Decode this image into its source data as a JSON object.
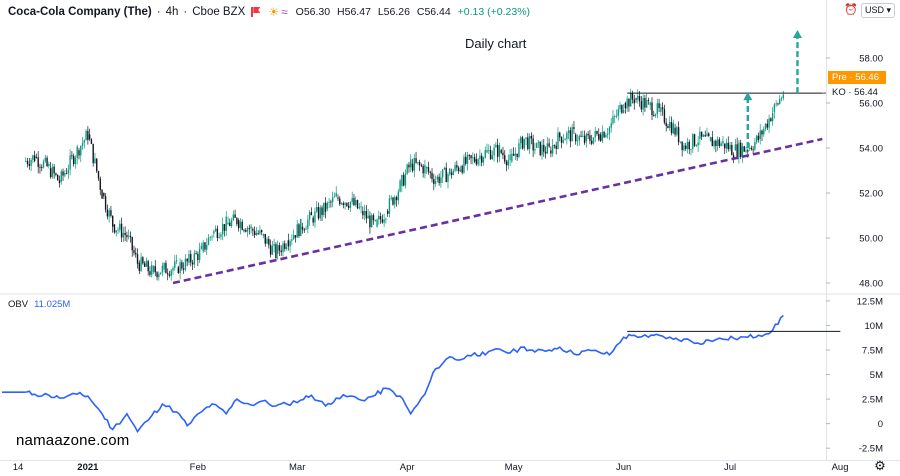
{
  "header": {
    "title": "Coca-Cola Company (The)",
    "interval": "4h",
    "exchange": "Cboe BZX",
    "open": "O56.30",
    "high": "H56.47",
    "low": "L56.26",
    "close": "C56.44",
    "change": "+0.13 (+0.23%)"
  },
  "currency_button": "USD",
  "annotation_text": "Daily chart",
  "watermark": "namaazone.com",
  "price_tags": {
    "pre": "Pre · 56.46",
    "last": "KO · 56.44"
  },
  "obv_label": {
    "name": "OBV",
    "value": "11.025M"
  },
  "colors": {
    "up": "#089981",
    "down": "#131722",
    "obv_line": "#2962ff",
    "trendline": "#6a2fa0",
    "arrow": "#26a69a",
    "pre_tag": "#ff9800"
  },
  "icons": [
    "flag-icon",
    "sun-icon",
    "waves-icon",
    "alarm-icon",
    "gear-icon"
  ],
  "chart_data": [
    {
      "type": "candlestick",
      "title": "",
      "ylim": [
        47.6,
        59.6
      ],
      "y_ticks": [
        "48.00",
        "50.00",
        "52.00",
        "54.00",
        "56.00",
        "58.00"
      ],
      "x_ticks": [
        "14",
        "2021",
        "Feb",
        "Mar",
        "Apr",
        "May",
        "Jun",
        "Jul",
        "Aug"
      ],
      "series": [
        {
          "name": "KO",
          "x": [
            "2020-12-14",
            "2020-12-17",
            "2020-12-21",
            "2020-12-24",
            "2020-12-29",
            "2021-01-01",
            "2021-01-05",
            "2021-01-08",
            "2021-01-12",
            "2021-01-15",
            "2021-01-19",
            "2021-01-22",
            "2021-01-26",
            "2021-01-29",
            "2021-02-02",
            "2021-02-05",
            "2021-02-09",
            "2021-02-12",
            "2021-02-16",
            "2021-02-19",
            "2021-02-23",
            "2021-02-26",
            "2021-03-02",
            "2021-03-05",
            "2021-03-09",
            "2021-03-12",
            "2021-03-16",
            "2021-03-19",
            "2021-03-23",
            "2021-03-26",
            "2021-03-30",
            "2021-04-02",
            "2021-04-06",
            "2021-04-09",
            "2021-04-13",
            "2021-04-16",
            "2021-04-20",
            "2021-04-23",
            "2021-04-27",
            "2021-04-30",
            "2021-05-04",
            "2021-05-07",
            "2021-05-11",
            "2021-05-14",
            "2021-05-18",
            "2021-05-21",
            "2021-05-25",
            "2021-05-28",
            "2021-06-01",
            "2021-06-04",
            "2021-06-08",
            "2021-06-11",
            "2021-06-15",
            "2021-06-18",
            "2021-06-22",
            "2021-06-25",
            "2021-06-29",
            "2021-07-02",
            "2021-07-06",
            "2021-07-09",
            "2021-07-13",
            "2021-07-16"
          ],
          "close": [
            53.4,
            53.6,
            53.1,
            52.5,
            53.9,
            54.6,
            52.0,
            50.6,
            50.1,
            48.9,
            48.5,
            48.6,
            48.7,
            48.9,
            49.4,
            50.2,
            50.6,
            50.8,
            50.4,
            50.1,
            49.3,
            49.9,
            50.5,
            50.9,
            51.3,
            51.8,
            51.6,
            51.2,
            50.5,
            51.2,
            52.3,
            53.3,
            53.1,
            52.6,
            52.9,
            53.2,
            53.5,
            53.8,
            53.9,
            53.4,
            54.4,
            54.0,
            53.9,
            54.5,
            54.6,
            54.3,
            54.6,
            54.9,
            56.0,
            56.2,
            55.9,
            55.6,
            54.9,
            54.1,
            54.4,
            54.3,
            54.2,
            53.9,
            54.0,
            54.4,
            55.6,
            56.44
          ]
        }
      ],
      "trendline": {
        "from": [
          "2021-01-25",
          48.0
        ],
        "to": [
          "2021-07-27",
          54.4
        ]
      },
      "resistance": {
        "y": 56.44,
        "from": "2021-06-02",
        "to": "2021-07-27"
      },
      "arrow_short": {
        "x": "2021-07-06",
        "from": 54.0,
        "to": 56.44
      },
      "arrow_long": {
        "x": "2021-07-20",
        "from": 56.44,
        "to": 59.2
      }
    },
    {
      "type": "line",
      "title": "",
      "ylim": [
        -3.5,
        13.0
      ],
      "y_ticks": [
        "12.5M",
        "10M",
        "7.5M",
        "5M",
        "2.5M",
        "0",
        "-2.5M"
      ],
      "series": [
        {
          "name": "OBV",
          "x": [
            "2020-12-14",
            "2020-12-17",
            "2020-12-21",
            "2020-12-24",
            "2020-12-29",
            "2021-01-01",
            "2021-01-05",
            "2021-01-08",
            "2021-01-12",
            "2021-01-15",
            "2021-01-19",
            "2021-01-22",
            "2021-01-26",
            "2021-01-29",
            "2021-02-02",
            "2021-02-05",
            "2021-02-09",
            "2021-02-12",
            "2021-02-16",
            "2021-02-19",
            "2021-02-23",
            "2021-02-26",
            "2021-03-02",
            "2021-03-05",
            "2021-03-09",
            "2021-03-12",
            "2021-03-16",
            "2021-03-19",
            "2021-03-23",
            "2021-03-26",
            "2021-03-30",
            "2021-04-02",
            "2021-04-06",
            "2021-04-09",
            "2021-04-13",
            "2021-04-16",
            "2021-04-20",
            "2021-04-23",
            "2021-04-27",
            "2021-04-30",
            "2021-05-04",
            "2021-05-07",
            "2021-05-11",
            "2021-05-14",
            "2021-05-18",
            "2021-05-21",
            "2021-05-25",
            "2021-05-28",
            "2021-06-01",
            "2021-06-04",
            "2021-06-08",
            "2021-06-11",
            "2021-06-15",
            "2021-06-18",
            "2021-06-22",
            "2021-06-25",
            "2021-06-29",
            "2021-07-02",
            "2021-07-06",
            "2021-07-09",
            "2021-07-13",
            "2021-07-16"
          ],
          "values": [
            3.2,
            3.0,
            2.9,
            2.6,
            3.0,
            2.8,
            1.0,
            -0.6,
            1.0,
            -0.8,
            0.8,
            2.0,
            1.2,
            -0.2,
            1.2,
            2.0,
            1.0,
            2.5,
            1.9,
            2.3,
            1.8,
            2.0,
            2.4,
            2.9,
            1.8,
            2.6,
            2.8,
            2.4,
            2.9,
            3.6,
            2.8,
            1.0,
            3.0,
            5.6,
            6.8,
            6.5,
            7.2,
            7.0,
            7.6,
            7.2,
            7.8,
            7.3,
            7.5,
            7.8,
            7.1,
            7.4,
            7.3,
            7.0,
            8.8,
            9.0,
            8.8,
            9.0,
            8.6,
            8.6,
            8.2,
            8.5,
            8.6,
            8.7,
            8.8,
            9.0,
            9.5,
            11.025
          ]
        }
      ],
      "resistance": {
        "y": 9.4,
        "from": "2021-06-02",
        "to": "2021-07-27"
      }
    }
  ]
}
